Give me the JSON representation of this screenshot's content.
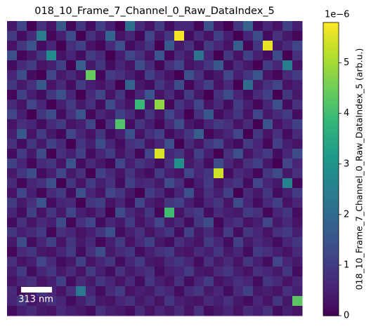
{
  "chart_data": {
    "type": "heatmap",
    "title": "018_10_Frame_7_Channel_0_Raw_DataIndex_5",
    "cmap": "viridis",
    "colorbar": {
      "label": "018_10_Frame_7_Channel_0_Raw_DataIndex_5 (arb.u.)",
      "offset_label": "1e−6",
      "lim": [
        0,
        5.8
      ],
      "ticks": [
        0,
        1,
        2,
        3,
        4,
        5
      ]
    },
    "scalebar_label": "313 nm",
    "values": [
      [
        0.4,
        1.2,
        0.0,
        0.8,
        0.3,
        1.6,
        0.1,
        0.9,
        0.2,
        1.1,
        0.5,
        0.0,
        2.1,
        0.7,
        0.3,
        1.0,
        0.2,
        0.6,
        0.6,
        0.1,
        1.4,
        0.4,
        0.0,
        0.9,
        1.8,
        0.2,
        0.6,
        0.3,
        1.1,
        0.5
      ],
      [
        1.0,
        0.2,
        0.7,
        2.4,
        0.1,
        0.5,
        1.3,
        0.0,
        0.8,
        0.4,
        1.9,
        0.3,
        0.6,
        0.1,
        1.2,
        0.4,
        0.9,
        5.7,
        0.2,
        0.7,
        0.3,
        1.1,
        0.5,
        0.0,
        0.6,
        1.3,
        0.2,
        0.8,
        0.4,
        0.1
      ],
      [
        0.3,
        0.9,
        1.5,
        0.2,
        0.6,
        0.0,
        0.8,
        1.1,
        0.3,
        0.1,
        0.7,
        1.4,
        0.2,
        0.5,
        0.9,
        0.0,
        1.6,
        0.4,
        0.8,
        0.2,
        1.0,
        0.6,
        0.3,
        1.7,
        0.1,
        0.9,
        5.6,
        0.4,
        0.7,
        1.2
      ],
      [
        1.4,
        0.1,
        0.4,
        0.9,
        2.8,
        0.3,
        0.6,
        0.2,
        1.0,
        0.7,
        0.0,
        0.5,
        1.2,
        0.8,
        0.3,
        1.5,
        0.1,
        0.7,
        0.4,
        2.2,
        0.6,
        0.0,
        0.9,
        0.3,
        1.1,
        0.5,
        0.2,
        1.3,
        0.0,
        0.8
      ],
      [
        0.2,
        0.7,
        1.0,
        0.3,
        0.5,
        1.1,
        0.0,
        1.7,
        0.4,
        0.9,
        0.2,
        0.6,
        0.3,
        1.3,
        0.7,
        0.1,
        0.8,
        1.2,
        0.3,
        0.5,
        0.9,
        1.6,
        0.2,
        0.7,
        0.4,
        0.0,
        1.0,
        0.6,
        2.5,
        0.3
      ],
      [
        0.6,
        1.3,
        0.2,
        0.0,
        1.2,
        0.4,
        0.7,
        0.3,
        4.4,
        0.1,
        1.0,
        0.8,
        0.5,
        0.2,
        1.1,
        0.6,
        0.3,
        0.0,
        1.4,
        0.8,
        0.2,
        0.4,
        1.2,
        0.5,
        0.9,
        1.5,
        0.3,
        0.1,
        0.7,
        1.0
      ],
      [
        0.9,
        0.4,
        0.8,
        1.6,
        0.3,
        0.7,
        0.2,
        1.0,
        0.5,
        0.3,
        0.6,
        0.0,
        1.8,
        0.4,
        0.2,
        0.9,
        0.5,
        1.3,
        0.1,
        0.6,
        1.1,
        0.3,
        0.7,
        0.0,
        2.0,
        0.4,
        0.8,
        1.2,
        0.3,
        0.5
      ],
      [
        0.1,
        1.1,
        0.5,
        0.2,
        0.9,
        1.4,
        0.6,
        0.0,
        0.7,
        1.2,
        0.3,
        0.9,
        0.1,
        0.6,
        1.5,
        0.3,
        0.7,
        0.2,
        1.0,
        0.4,
        0.0,
        0.8,
        1.3,
        0.6,
        0.2,
        0.7,
        1.1,
        0.0,
        0.9,
        0.4
      ],
      [
        0.7,
        0.3,
        1.2,
        0.6,
        0.0,
        0.5,
        1.0,
        0.4,
        0.8,
        0.2,
        1.3,
        0.6,
        0.3,
        3.9,
        0.4,
        4.8,
        0.1,
        0.9,
        0.5,
        1.2,
        0.3,
        0.7,
        0.2,
        1.0,
        0.5,
        0.1,
        0.6,
        1.4,
        0.2,
        0.8
      ],
      [
        1.2,
        0.5,
        0.0,
        0.9,
        1.3,
        0.2,
        0.8,
        1.5,
        0.1,
        0.6,
        0.4,
        1.1,
        0.7,
        0.2,
        0.9,
        0.3,
        1.2,
        0.6,
        0.0,
        0.8,
        1.6,
        0.2,
        0.5,
        0.9,
        0.3,
        1.2,
        0.4,
        0.7,
        1.0,
        0.2
      ],
      [
        0.3,
        0.8,
        0.6,
        0.2,
        0.7,
        1.0,
        0.3,
        0.5,
        1.2,
        0.0,
        0.8,
        4.2,
        0.2,
        0.9,
        0.5,
        0.1,
        0.7,
        1.3,
        0.4,
        0.2,
        0.6,
        1.0,
        0.8,
        0.3,
        0.7,
        0.0,
        1.5,
        0.3,
        0.6,
        1.1
      ],
      [
        0.5,
        1.6,
        0.3,
        1.0,
        0.4,
        0.1,
        1.2,
        0.6,
        0.3,
        0.9,
        0.2,
        0.5,
        1.4,
        0.3,
        0.8,
        1.1,
        0.2,
        0.5,
        0.9,
        1.7,
        0.1,
        0.4,
        0.6,
        1.2,
        0.0,
        0.9,
        0.3,
        0.8,
        0.2,
        0.7
      ],
      [
        0.8,
        0.2,
        0.9,
        0.4,
        1.1,
        0.7,
        0.0,
        0.9,
        0.5,
        1.3,
        0.6,
        0.2,
        0.8,
        1.0,
        0.3,
        0.6,
        1.4,
        0.0,
        0.7,
        0.3,
        0.9,
        1.2,
        0.4,
        0.2,
        1.0,
        0.6,
        0.1,
        1.1,
        0.5,
        0.3
      ],
      [
        0.2,
        1.0,
        0.4,
        1.3,
        0.0,
        0.8,
        0.5,
        1.1,
        0.2,
        0.6,
        1.0,
        0.3,
        0.7,
        0.1,
        1.2,
        5.5,
        0.6,
        0.9,
        0.3,
        1.1,
        0.5,
        0.0,
        0.8,
        1.4,
        0.3,
        0.7,
        1.0,
        0.2,
        0.6,
        1.3
      ],
      [
        1.1,
        0.6,
        0.1,
        0.7,
        0.9,
        0.3,
        1.5,
        0.2,
        0.7,
        0.4,
        0.1,
        1.2,
        0.5,
        0.9,
        0.6,
        0.2,
        0.8,
        2.9,
        0.4,
        0.7,
        0.2,
        1.3,
        0.6,
        0.3,
        0.8,
        1.1,
        0.4,
        0.0,
        1.2,
        0.6
      ],
      [
        0.4,
        0.9,
        1.3,
        0.2,
        0.5,
        1.2,
        0.4,
        0.8,
        0.0,
        1.1,
        0.7,
        0.3,
        0.9,
        0.4,
        0.2,
        1.0,
        0.5,
        0.3,
        1.2,
        0.6,
        0.9,
        5.4,
        0.2,
        0.7,
        0.5,
        0.1,
        0.9,
        1.3,
        0.4,
        0.8
      ],
      [
        0.7,
        0.1,
        0.6,
        0.8,
        1.4,
        0.0,
        0.9,
        0.3,
        1.0,
        0.5,
        0.8,
        0.2,
        1.1,
        0.6,
        0.7,
        0.4,
        1.3,
        0.8,
        0.1,
        0.5,
        1.0,
        0.3,
        0.7,
        0.9,
        0.2,
        1.2,
        0.6,
        0.4,
        2.6,
        0.1
      ],
      [
        0.3,
        1.2,
        0.5,
        0.1,
        0.7,
        1.0,
        0.2,
        1.4,
        0.6,
        0.3,
        1.2,
        0.9,
        0.4,
        0.0,
        1.0,
        0.7,
        0.2,
        0.6,
        1.4,
        0.3,
        0.8,
        0.5,
        1.1,
        0.0,
        0.7,
        0.4,
        0.9,
        0.2,
        0.5,
        1.0
      ],
      [
        1.0,
        0.4,
        0.8,
        1.5,
        0.2,
        0.6,
        0.7,
        0.0,
        0.9,
        1.1,
        0.3,
        0.6,
        0.2,
        1.2,
        0.5,
        0.3,
        0.9,
        1.1,
        0.5,
        0.2,
        0.6,
        0.9,
        0.3,
        1.3,
        0.6,
        0.2,
        0.7,
        1.1,
        0.3,
        0.6
      ],
      [
        0.6,
        0.2,
        1.1,
        0.3,
        0.9,
        0.4,
        1.2,
        0.5,
        0.3,
        0.7,
        0.0,
        1.3,
        0.7,
        0.4,
        0.9,
        0.1,
        4.0,
        0.3,
        0.8,
        1.0,
        0.2,
        0.7,
        0.5,
        0.4,
        1.0,
        0.8,
        0.1,
        0.6,
        0.9,
        0.2
      ],
      [
        0.2,
        0.8,
        0.3,
        0.7,
        0.5,
        1.3,
        0.1,
        0.8,
        1.2,
        0.2,
        0.6,
        0.4,
        1.0,
        0.3,
        0.6,
        1.2,
        0.4,
        0.7,
        0.2,
        0.9,
        1.3,
        0.1,
        0.6,
        0.8,
        0.3,
        0.5,
        1.2,
        0.4,
        0.7,
        0.3
      ],
      [
        0.9,
        0.5,
        0.7,
        1.0,
        0.1,
        0.8,
        0.6,
        0.3,
        0.5,
        0.9,
        1.4,
        0.2,
        0.5,
        0.8,
        0.3,
        0.6,
        0.9,
        0.2,
        1.1,
        0.4,
        0.7,
        0.3,
        1.0,
        0.2,
        0.9,
        0.6,
        0.3,
        0.8,
        1.0,
        0.5
      ],
      [
        0.4,
        1.3,
        0.2,
        0.6,
        1.1,
        0.3,
        0.9,
        0.4,
        0.7,
        0.1,
        0.5,
        1.0,
        0.3,
        0.7,
        1.1,
        0.4,
        0.2,
        0.8,
        0.5,
        0.3,
        1.0,
        0.6,
        0.2,
        1.1,
        0.4,
        0.7,
        0.5,
        0.2,
        0.6,
        0.9
      ],
      [
        0.1,
        0.7,
        0.9,
        0.4,
        0.3,
        0.6,
        1.0,
        0.2,
        0.8,
        1.3,
        0.4,
        0.7,
        0.9,
        0.2,
        0.5,
        0.8,
        1.0,
        0.4,
        0.3,
        0.7,
        0.5,
        0.9,
        0.4,
        0.6,
        0.2,
        1.0,
        0.8,
        0.5,
        0.3,
        0.7
      ],
      [
        0.8,
        0.3,
        0.5,
        1.2,
        0.7,
        0.2,
        0.4,
        1.1,
        0.3,
        0.6,
        0.9,
        0.2,
        0.6,
        1.0,
        0.4,
        0.3,
        0.7,
        0.9,
        0.6,
        0.2,
        0.8,
        0.4,
        0.7,
        0.3,
        0.9,
        0.5,
        0.2,
        1.2,
        0.6,
        0.4
      ],
      [
        0.5,
        1.0,
        0.2,
        0.6,
        0.9,
        0.4,
        0.7,
        0.3,
        1.0,
        0.5,
        0.2,
        0.8,
        0.4,
        0.6,
        0.8,
        0.2,
        0.5,
        0.6,
        1.0,
        0.4,
        0.3,
        0.7,
        0.9,
        0.5,
        0.3,
        0.8,
        0.6,
        0.4,
        0.9,
        0.2
      ],
      [
        0.3,
        0.6,
        0.8,
        0.3,
        0.5,
        1.1,
        0.2,
        0.7,
        0.4,
        0.9,
        0.6,
        0.3,
        0.7,
        0.2,
        0.9,
        0.5,
        0.3,
        0.8,
        0.2,
        0.6,
        1.0,
        0.3,
        0.5,
        0.8,
        0.6,
        0.2,
        0.9,
        0.7,
        0.3,
        0.6
      ],
      [
        0.7,
        0.2,
        0.4,
        0.9,
        0.6,
        0.3,
        0.8,
        2.3,
        0.6,
        0.2,
        0.7,
        1.0,
        0.3,
        0.5,
        0.4,
        0.8,
        0.6,
        0.2,
        0.7,
        0.9,
        0.4,
        0.6,
        0.2,
        0.7,
        1.1,
        0.4,
        0.5,
        0.3,
        0.8,
        0.5
      ],
      [
        0.6,
        0.9,
        0.3,
        0.5,
        0.8,
        0.6,
        0.2,
        0.5,
        0.9,
        0.4,
        0.3,
        0.6,
        0.8,
        0.4,
        0.6,
        0.3,
        0.9,
        0.5,
        0.4,
        0.3,
        0.7,
        0.5,
        0.8,
        0.4,
        0.2,
        0.6,
        0.3,
        0.9,
        0.4,
        4.3
      ],
      [
        0.2,
        0.5,
        0.7,
        0.4,
        0.3,
        0.7,
        0.5,
        0.4,
        0.2,
        0.8,
        0.5,
        0.4,
        0.2,
        0.7,
        0.3,
        0.6,
        0.4,
        0.7,
        0.3,
        0.8,
        0.2,
        0.4,
        0.6,
        0.3,
        0.7,
        0.5,
        0.8,
        0.2,
        0.5,
        0.3
      ]
    ]
  }
}
